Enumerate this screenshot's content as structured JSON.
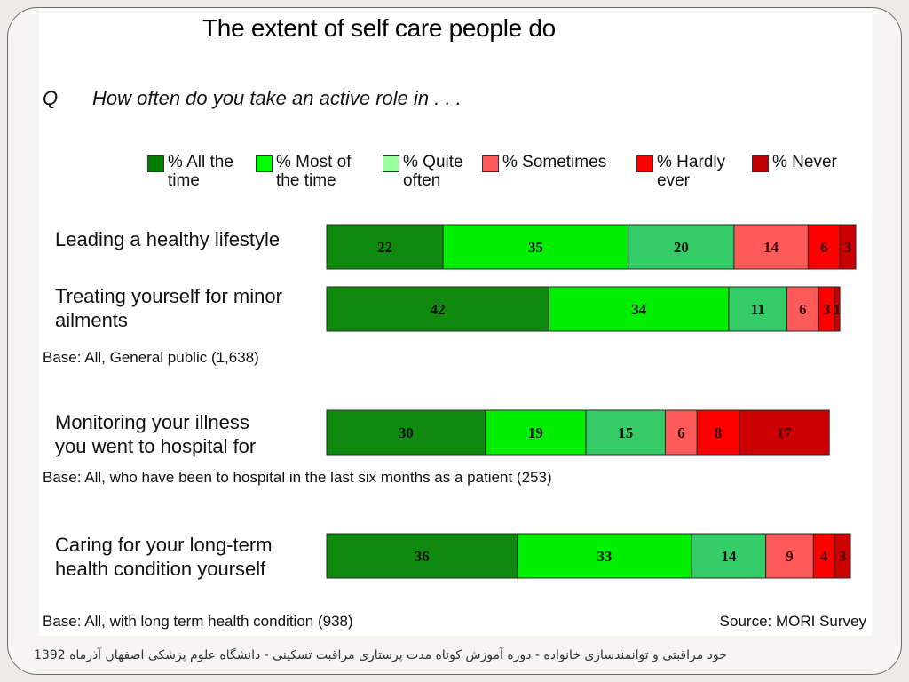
{
  "slide": {
    "title": "The extent of self care people do",
    "q_letter": "Q",
    "question": "How often do you take an active role in . . .",
    "source": "Source: MORI Survey",
    "footer": "خود مراقبتی و توانمندسازی خانواده - دوره آموزش کوتاه مدت پرستاری مراقبت تسکینی - دانشگاه علوم پزشکی اصفهان آذرماه 1392"
  },
  "legend": [
    {
      "label": "% All the\ntime",
      "color": "#008000"
    },
    {
      "label": "% Most of\nthe time",
      "color": "#00ff00"
    },
    {
      "label": "% Quite\noften",
      "color": "#99ff99"
    },
    {
      "label": "% Sometimes",
      "color": "#ff5a5a"
    },
    {
      "label": "% Hardly\never",
      "color": "#ff0000"
    },
    {
      "label": "% Never",
      "color": "#c00000"
    }
  ],
  "bases": [
    "Base: All, General public (1,638)",
    "Base: All, who have been to hospital in the last six months as a patient (253)",
    "Base: All, with long term health condition (938)"
  ],
  "chart_data": {
    "type": "bar",
    "orientation": "horizontal",
    "stacked": true,
    "categories": [
      "Leading a healthy lifestyle",
      "Treating yourself for minor\nailments",
      "Monitoring your illness\nyou went to hospital for",
      "Caring for your long-term\nhealth condition yourself"
    ],
    "series": [
      {
        "name": "% All the time",
        "color": "#008000",
        "bar_color": "#0f8a0f",
        "values": [
          22,
          42,
          30,
          36
        ]
      },
      {
        "name": "% Most of the time",
        "color": "#00ff00",
        "bar_color": "#00ee00",
        "values": [
          35,
          34,
          19,
          33
        ]
      },
      {
        "name": "% Quite often",
        "color": "#99ff99",
        "bar_color": "#33cc66",
        "values": [
          20,
          11,
          15,
          14
        ]
      },
      {
        "name": "% Sometimes",
        "color": "#ff5a5a",
        "bar_color": "#ff5a5a",
        "values": [
          14,
          6,
          6,
          9
        ]
      },
      {
        "name": "% Hardly ever",
        "color": "#ff0000",
        "bar_color": "#ff0000",
        "values": [
          6,
          3,
          8,
          4
        ]
      },
      {
        "name": "% Never",
        "color": "#c00000",
        "bar_color": "#cc0000",
        "values": [
          3,
          1,
          17,
          3
        ]
      }
    ],
    "xlim": [
      0,
      100
    ],
    "legend_position": "top"
  }
}
